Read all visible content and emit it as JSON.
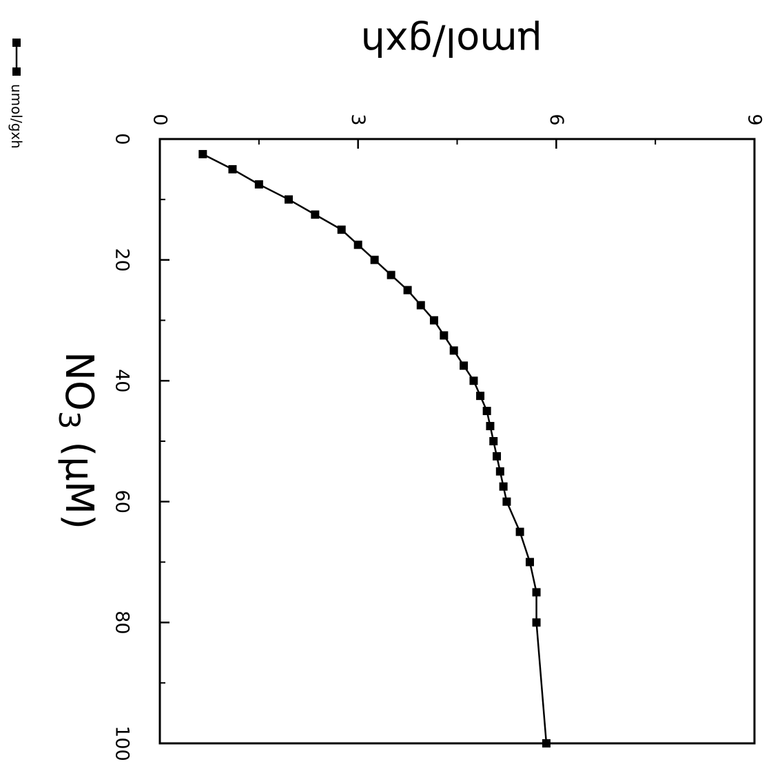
{
  "chart_data": {
    "type": "line",
    "title": "",
    "xlabel": "NO",
    "xlabel_subscript": "3",
    "xlabel_unit": "(µM)",
    "ylabel": "µmol/gxh",
    "xlim": [
      0,
      100
    ],
    "ylim": [
      0,
      9
    ],
    "x_ticks": [
      0,
      20,
      40,
      60,
      80,
      100
    ],
    "y_ticks": [
      0,
      3,
      6,
      9
    ],
    "grid": false,
    "legend_position": "left",
    "series": [
      {
        "name": "umol/gxh",
        "x": [
          2.5,
          5,
          7.5,
          10,
          12.5,
          15,
          17.5,
          20,
          22.5,
          25,
          27.5,
          30,
          32.5,
          35,
          37.5,
          40,
          42.5,
          45,
          47.5,
          50,
          52.5,
          55,
          57.5,
          60,
          65,
          70,
          75,
          80,
          100
        ],
        "y": [
          0.65,
          1.1,
          1.5,
          1.95,
          2.35,
          2.75,
          3.0,
          3.25,
          3.5,
          3.75,
          3.95,
          4.15,
          4.3,
          4.45,
          4.6,
          4.75,
          4.85,
          4.95,
          5.0,
          5.05,
          5.1,
          5.15,
          5.2,
          5.25,
          5.45,
          5.6,
          5.7,
          5.7,
          5.85
        ]
      }
    ]
  }
}
